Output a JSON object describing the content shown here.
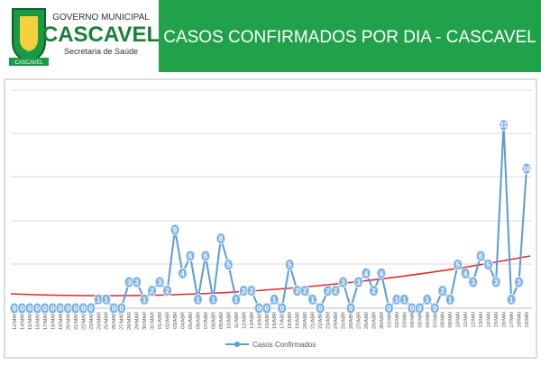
{
  "header": {
    "org": "GOVERNO MUNICIPAL",
    "city": "CASCAVEL",
    "department": "Secretaria de Saúde",
    "crest_label": "CASCAVEL"
  },
  "chart_data": {
    "type": "line",
    "title": "CASOS CONFIRMADOS POR DIA - CASCAVEL",
    "categories": [
      "12/MAR",
      "14/MAR",
      "15/MAR",
      "16/MAR",
      "17/MAR",
      "18/MAR",
      "19/MAR",
      "20/MAR",
      "21/MAR",
      "22/MAR",
      "23/MAR",
      "24/MAR",
      "25/MAR",
      "26/MAR",
      "27/MAR",
      "28/MAR",
      "29/MAR",
      "30/MAR",
      "31/MAR",
      "01/ABR",
      "02/ABR",
      "03/ABR",
      "04/ABR",
      "05/ABR",
      "06/ABR",
      "07/ABR",
      "08/ABR",
      "09/ABR",
      "10/ABR",
      "11/ABR",
      "12/ABR",
      "13/ABR",
      "14/ABR",
      "15/ABR",
      "16/ABR",
      "17/ABR",
      "18/ABR",
      "19/ABR",
      "20/ABR",
      "21/ABR",
      "22/ABR",
      "23/ABR",
      "24/ABR",
      "25/ABR",
      "26/ABR",
      "27/ABR",
      "28/ABR",
      "29/ABR",
      "30/ABR",
      "01/MAI",
      "02/MAI",
      "03/MAI",
      "04/MAI",
      "05/MAI",
      "06/MAI",
      "07/MAI",
      "08/MAI",
      "09/MAI",
      "10/MAI",
      "11/MAI",
      "12/MAI",
      "13/MAI",
      "14/MAI",
      "15/MAI",
      "16/MAI",
      "17/MAI",
      "18/MAI",
      "19/MAI"
    ],
    "series": [
      {
        "name": "Casos Confirmados",
        "color": "#5b9bd5",
        "values": [
          0,
          0,
          0,
          0,
          0,
          0,
          0,
          0,
          0,
          0,
          0,
          1,
          1,
          0,
          0,
          3,
          3,
          1,
          2,
          3,
          2,
          9,
          4,
          6,
          1,
          6,
          1,
          8,
          5,
          1,
          2,
          2,
          0,
          0,
          1,
          0,
          5,
          2,
          2,
          1,
          0,
          2,
          2,
          3,
          0,
          3,
          4,
          2,
          4,
          0,
          1,
          1,
          0,
          0,
          1,
          0,
          2,
          1,
          5,
          4,
          3,
          6,
          5,
          3,
          21,
          1,
          3,
          16
        ]
      }
    ],
    "ylim": [
      0,
      25
    ],
    "legend": "bottom",
    "trendline_color": "#e0262b"
  }
}
